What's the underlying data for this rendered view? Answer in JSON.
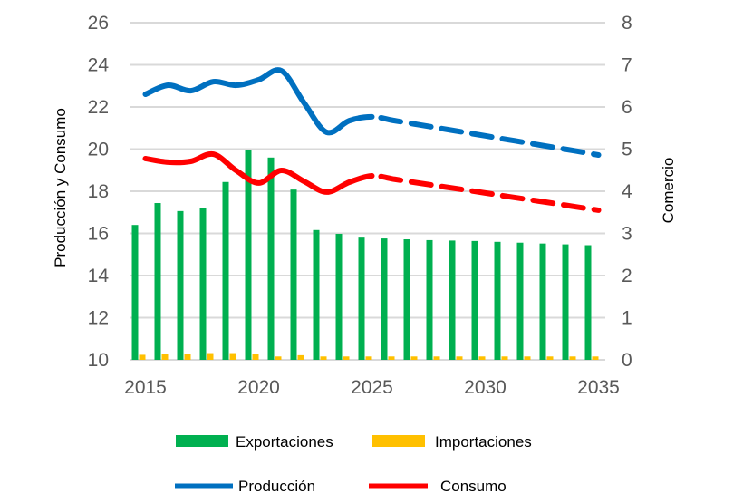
{
  "chart_data": {
    "type": "bar+line",
    "title": "",
    "categories": [
      2015,
      2016,
      2017,
      2018,
      2019,
      2020,
      2021,
      2022,
      2023,
      2024,
      2025,
      2026,
      2027,
      2028,
      2029,
      2030,
      2031,
      2032,
      2033,
      2034,
      2035
    ],
    "x_tick_labels": [
      "2015",
      "2020",
      "2025",
      "2030",
      "2035"
    ],
    "y_left": {
      "label": "Producción y Consumo",
      "range": [
        10,
        26
      ],
      "ticks": [
        "10",
        "12",
        "14",
        "16",
        "18",
        "20",
        "22",
        "24",
        "26"
      ]
    },
    "y_right": {
      "label": "Comercio",
      "range": [
        0,
        8
      ],
      "ticks": [
        "0",
        "1",
        "2",
        "3",
        "4",
        "5",
        "6",
        "7",
        "8"
      ]
    },
    "grid": true,
    "legend_position": "bottom",
    "projection_start": 2025,
    "bar_series": [
      {
        "name": "Exportaciones",
        "axis": "right",
        "color": "#00b050",
        "values": [
          3.2,
          3.72,
          3.53,
          3.61,
          4.22,
          4.97,
          4.8,
          4.04,
          3.08,
          2.99,
          2.9,
          2.88,
          2.86,
          2.84,
          2.83,
          2.82,
          2.8,
          2.78,
          2.76,
          2.74,
          2.72
        ]
      },
      {
        "name": "Importaciones",
        "axis": "right",
        "color": "#ffc000",
        "values": [
          0.12,
          0.15,
          0.15,
          0.16,
          0.16,
          0.15,
          0.08,
          0.11,
          0.08,
          0.08,
          0.08,
          0.08,
          0.08,
          0.08,
          0.08,
          0.08,
          0.08,
          0.08,
          0.08,
          0.08,
          0.08
        ]
      }
    ],
    "line_series": [
      {
        "name": "Producción",
        "axis": "left",
        "color": "#0070c0",
        "values": [
          22.6,
          23.03,
          22.77,
          23.2,
          23.03,
          23.29,
          23.72,
          22.2,
          20.8,
          21.35,
          21.53,
          21.35,
          21.17,
          20.99,
          20.81,
          20.63,
          20.45,
          20.27,
          20.09,
          19.91,
          19.72
        ]
      },
      {
        "name": "Consumo",
        "axis": "left",
        "color": "#ff0000",
        "values": [
          19.55,
          19.38,
          19.42,
          19.76,
          18.99,
          18.39,
          18.99,
          18.47,
          17.96,
          18.43,
          18.73,
          18.57,
          18.4,
          18.24,
          18.08,
          17.92,
          17.75,
          17.59,
          17.43,
          17.26,
          17.1
        ]
      }
    ]
  }
}
